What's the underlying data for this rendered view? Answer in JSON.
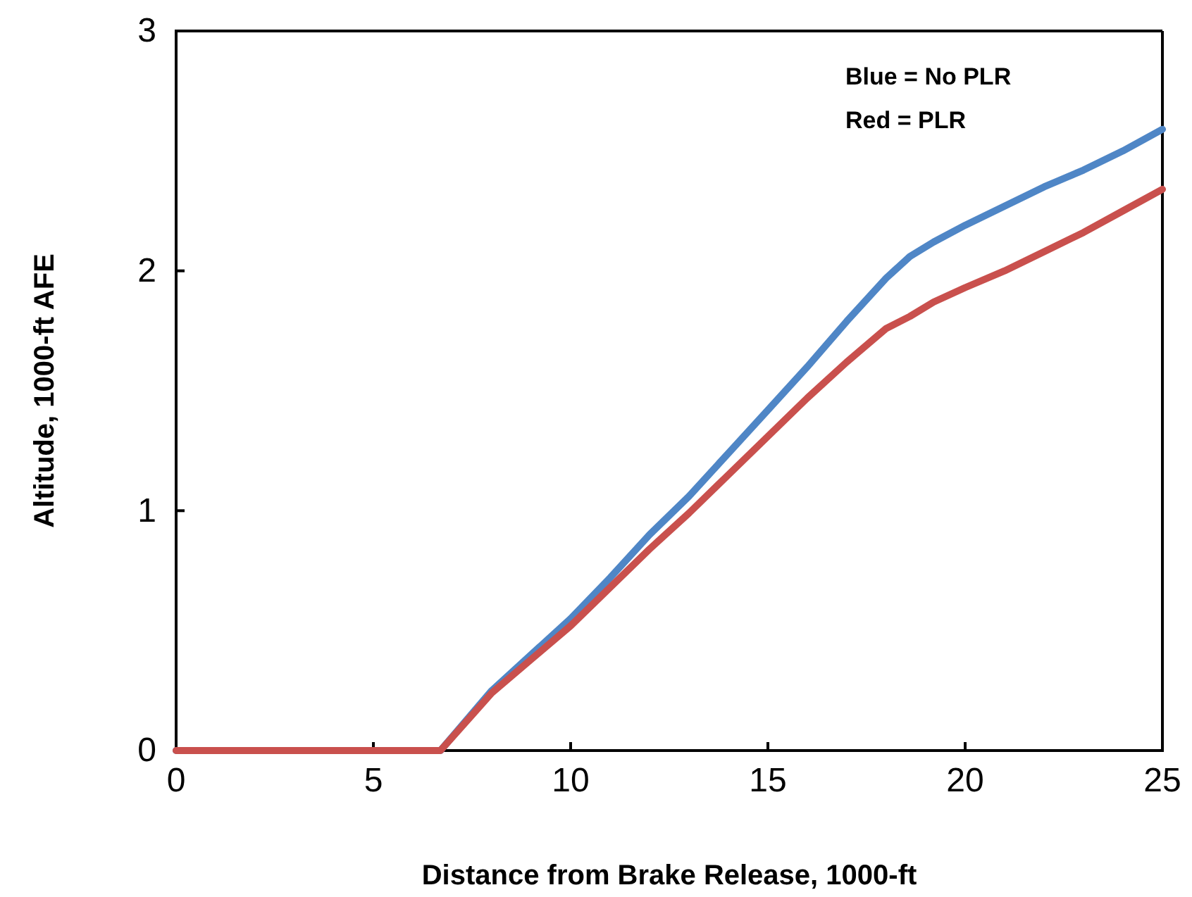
{
  "chart_data": {
    "type": "line",
    "xlabel": "Distance from Brake Release, 1000-ft",
    "ylabel": "Altitude, 1000-ft AFE",
    "xlim": [
      0,
      25
    ],
    "ylim": [
      0,
      3
    ],
    "xticks": [
      0,
      5,
      10,
      15,
      20,
      25
    ],
    "yticks": [
      0,
      1,
      2,
      3
    ],
    "series": [
      {
        "color": "#4f86c6",
        "x": [
          0,
          6.7,
          8,
          9,
          10,
          11,
          12,
          13,
          14,
          15,
          16,
          17,
          18,
          18.6,
          19.2,
          20,
          21,
          22,
          23,
          24,
          25
        ],
        "values": [
          0,
          0,
          0.25,
          0.4,
          0.55,
          0.72,
          0.9,
          1.06,
          1.24,
          1.42,
          1.6,
          1.79,
          1.97,
          2.06,
          2.12,
          2.19,
          2.27,
          2.35,
          2.42,
          2.5,
          2.59
        ]
      },
      {
        "color": "#c9504d",
        "x": [
          0,
          6.7,
          8,
          9,
          10,
          11,
          12,
          13,
          14,
          15,
          16,
          17,
          18,
          18.6,
          19.2,
          20,
          21,
          22,
          23,
          24,
          25
        ],
        "values": [
          0,
          0,
          0.24,
          0.38,
          0.52,
          0.68,
          0.84,
          0.99,
          1.15,
          1.31,
          1.47,
          1.62,
          1.76,
          1.81,
          1.87,
          1.93,
          2,
          2.08,
          2.16,
          2.25,
          2.34
        ]
      }
    ],
    "annotations": [
      "Blue = No PLR",
      "Red = PLR"
    ],
    "marker": "none",
    "line_style": "solid",
    "grid": false
  }
}
